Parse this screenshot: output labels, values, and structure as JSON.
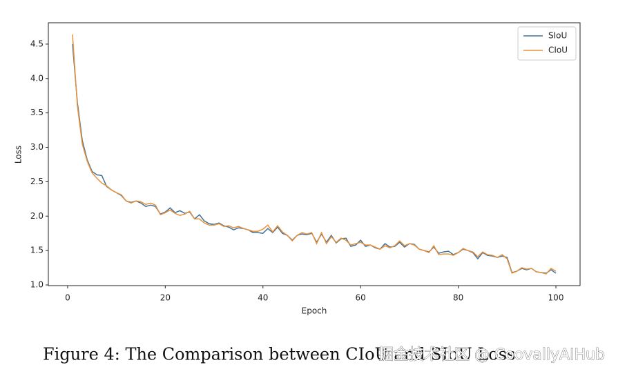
{
  "chart_data": {
    "type": "line",
    "xlabel": "Epoch",
    "ylabel": "Loss",
    "caption": "Figure 4: The Comparison between CIoU and SIoU Loss",
    "watermark": "掘金技术社区 @ CoovallyAIHub",
    "x": [
      1,
      2,
      3,
      4,
      5,
      6,
      7,
      8,
      9,
      10,
      11,
      12,
      13,
      14,
      15,
      16,
      17,
      18,
      19,
      20,
      21,
      22,
      23,
      24,
      25,
      26,
      27,
      28,
      29,
      30,
      31,
      32,
      33,
      34,
      35,
      36,
      37,
      38,
      39,
      40,
      41,
      42,
      43,
      44,
      45,
      46,
      47,
      48,
      49,
      50,
      51,
      52,
      53,
      54,
      55,
      56,
      57,
      58,
      59,
      60,
      61,
      62,
      63,
      64,
      65,
      66,
      67,
      68,
      69,
      70,
      71,
      72,
      73,
      74,
      75,
      76,
      77,
      78,
      79,
      80,
      81,
      82,
      83,
      84,
      85,
      86,
      87,
      88,
      89,
      90,
      91,
      92,
      93,
      94,
      95,
      96,
      97,
      98,
      99,
      100
    ],
    "series": [
      {
        "name": "SIoU",
        "color": "#41729a",
        "values": [
          4.5,
          3.65,
          3.1,
          2.82,
          2.65,
          2.6,
          2.59,
          2.43,
          2.38,
          2.34,
          2.3,
          2.22,
          2.2,
          2.22,
          2.19,
          2.14,
          2.16,
          2.14,
          2.03,
          2.06,
          2.12,
          2.05,
          2.08,
          2.04,
          2.06,
          1.96,
          2.02,
          1.93,
          1.89,
          1.88,
          1.9,
          1.86,
          1.84,
          1.8,
          1.83,
          1.82,
          1.8,
          1.76,
          1.76,
          1.75,
          1.82,
          1.76,
          1.84,
          1.75,
          1.72,
          1.65,
          1.72,
          1.74,
          1.73,
          1.75,
          1.62,
          1.74,
          1.62,
          1.72,
          1.61,
          1.67,
          1.68,
          1.56,
          1.58,
          1.65,
          1.56,
          1.58,
          1.54,
          1.52,
          1.6,
          1.55,
          1.56,
          1.62,
          1.55,
          1.6,
          1.59,
          1.52,
          1.5,
          1.48,
          1.55,
          1.46,
          1.48,
          1.49,
          1.44,
          1.47,
          1.52,
          1.5,
          1.47,
          1.38,
          1.47,
          1.43,
          1.42,
          1.4,
          1.42,
          1.4,
          1.18,
          1.2,
          1.24,
          1.22,
          1.24,
          1.19,
          1.18,
          1.17,
          1.22,
          1.17
        ]
      },
      {
        "name": "CIoU",
        "color": "#e8913a",
        "values": [
          4.64,
          3.6,
          3.05,
          2.8,
          2.63,
          2.55,
          2.48,
          2.44,
          2.38,
          2.34,
          2.31,
          2.22,
          2.19,
          2.22,
          2.21,
          2.17,
          2.19,
          2.16,
          2.02,
          2.05,
          2.09,
          2.04,
          2.01,
          2.03,
          2.07,
          1.96,
          1.96,
          1.9,
          1.87,
          1.87,
          1.89,
          1.85,
          1.86,
          1.83,
          1.85,
          1.82,
          1.8,
          1.78,
          1.78,
          1.81,
          1.87,
          1.77,
          1.86,
          1.77,
          1.72,
          1.64,
          1.72,
          1.76,
          1.74,
          1.76,
          1.6,
          1.76,
          1.6,
          1.7,
          1.62,
          1.68,
          1.65,
          1.58,
          1.6,
          1.62,
          1.58,
          1.58,
          1.55,
          1.52,
          1.57,
          1.54,
          1.57,
          1.64,
          1.57,
          1.6,
          1.58,
          1.52,
          1.5,
          1.47,
          1.57,
          1.44,
          1.45,
          1.45,
          1.43,
          1.47,
          1.53,
          1.5,
          1.48,
          1.41,
          1.48,
          1.44,
          1.43,
          1.4,
          1.44,
          1.38,
          1.17,
          1.2,
          1.25,
          1.23,
          1.24,
          1.19,
          1.18,
          1.16,
          1.24,
          1.2
        ]
      }
    ],
    "xlim": [
      -3.95,
      104.95
    ],
    "ylim": [
      0.99,
      4.81
    ],
    "xticks": [
      0,
      20,
      40,
      60,
      80,
      100
    ],
    "yticks": [
      {
        "value": 1,
        "label": "1.0"
      },
      1.5,
      {
        "value": 2,
        "label": "2.0"
      },
      2.5,
      {
        "value": 3,
        "label": "3.0"
      },
      3.5,
      {
        "value": 4,
        "label": "4.0"
      },
      4.5
    ],
    "legend": "upper right",
    "grid": false
  }
}
